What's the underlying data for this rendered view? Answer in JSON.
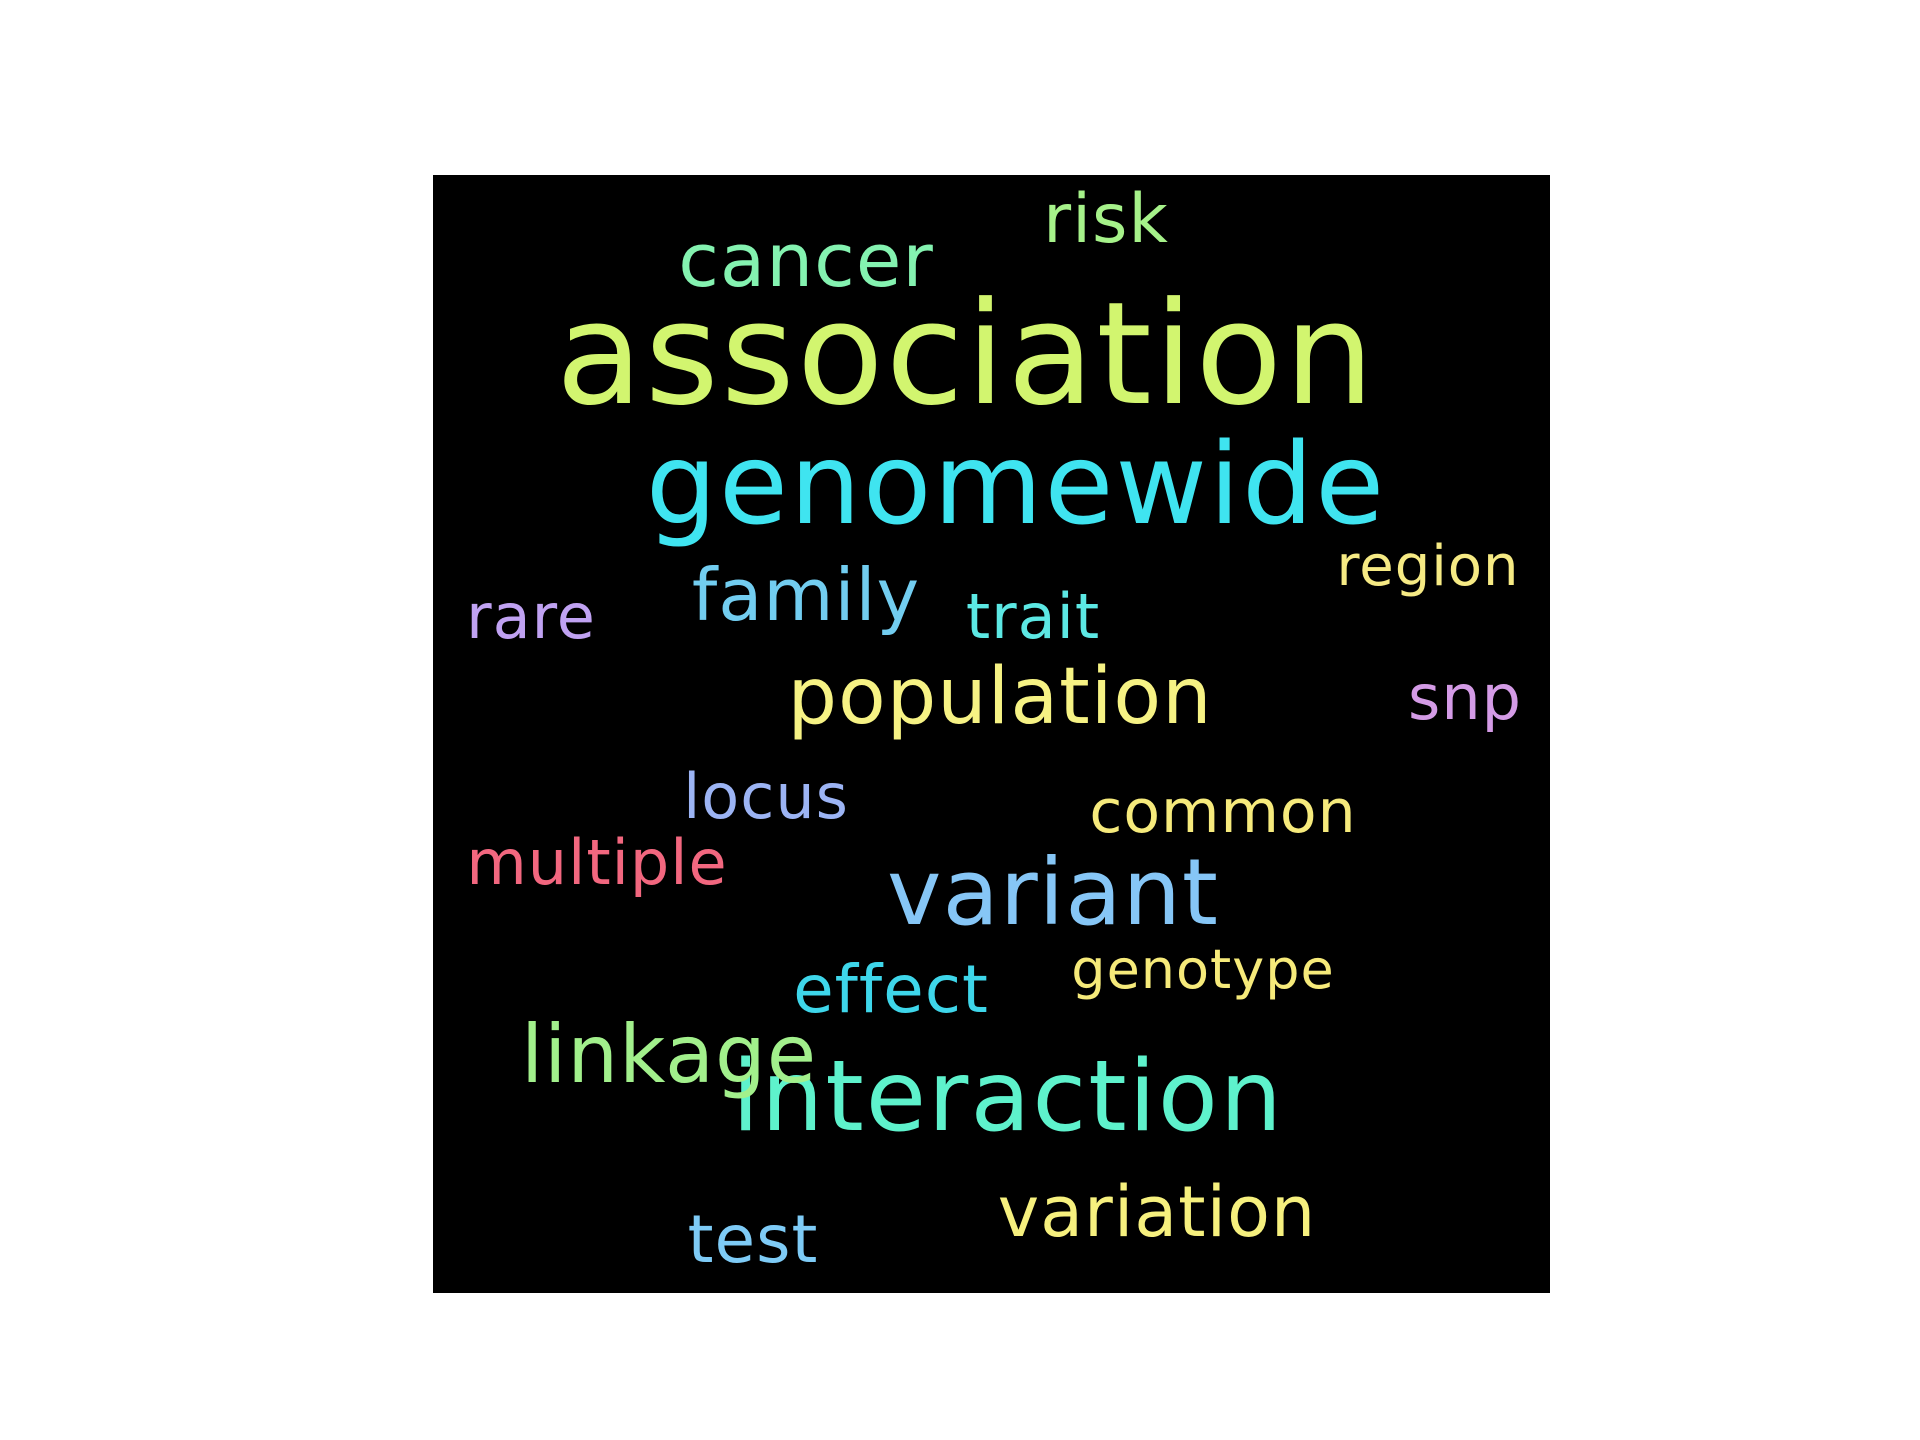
{
  "wordcloud": {
    "background_color": "#000000",
    "words": [
      {
        "text": "association",
        "color": "#d2f56f"
      },
      {
        "text": "genomewide",
        "color": "#3fe4f0"
      },
      {
        "text": "interaction",
        "color": "#5ef2cc"
      },
      {
        "text": "variant",
        "color": "#86c6f6"
      },
      {
        "text": "population",
        "color": "#f6f284"
      },
      {
        "text": "linkage",
        "color": "#a2f08c"
      },
      {
        "text": "cancer",
        "color": "#84f2b0"
      },
      {
        "text": "variation",
        "color": "#f6f07e"
      },
      {
        "text": "family",
        "color": "#72cdf0"
      },
      {
        "text": "risk",
        "color": "#a6f28a"
      },
      {
        "text": "effect",
        "color": "#3ed6ea"
      },
      {
        "text": "multiple",
        "color": "#f2677f"
      },
      {
        "text": "locus",
        "color": "#9cb4f4"
      },
      {
        "text": "common",
        "color": "#f6ea7c"
      },
      {
        "text": "trait",
        "color": "#5ce8e4"
      },
      {
        "text": "region",
        "color": "#f6ea84"
      },
      {
        "text": "snp",
        "color": "#d49be6"
      },
      {
        "text": "rare",
        "color": "#c0a2f2"
      },
      {
        "text": "genotype",
        "color": "#f6ea7a"
      },
      {
        "text": "test",
        "color": "#7ecbf6"
      }
    ]
  }
}
